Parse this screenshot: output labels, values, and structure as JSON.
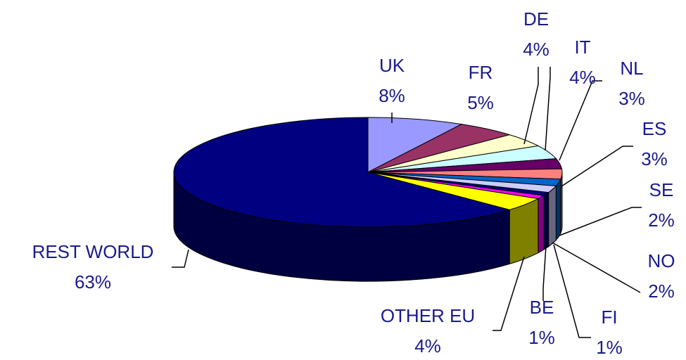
{
  "chart_data": {
    "type": "pie",
    "style": "3d",
    "categories": [
      "UK",
      "FR",
      "DE",
      "IT",
      "NL",
      "ES",
      "SE",
      "NO",
      "FI",
      "BE",
      "OTHER EU",
      "REST WORLD"
    ],
    "values": [
      8,
      5,
      4,
      4,
      3,
      3,
      2,
      2,
      1,
      1,
      4,
      63
    ],
    "value_labels": [
      "8%",
      "5%",
      "4%",
      "4%",
      "3%",
      "3%",
      "2%",
      "2%",
      "1%",
      "1%",
      "4%",
      "63%"
    ],
    "colors": [
      "#9999ff",
      "#993366",
      "#ffffcc",
      "#ccffff",
      "#660066",
      "#ff8080",
      "#0066cc",
      "#ccccff",
      "#000080",
      "#ff00ff",
      "#ffff00",
      "#000080"
    ],
    "legend": "none"
  }
}
